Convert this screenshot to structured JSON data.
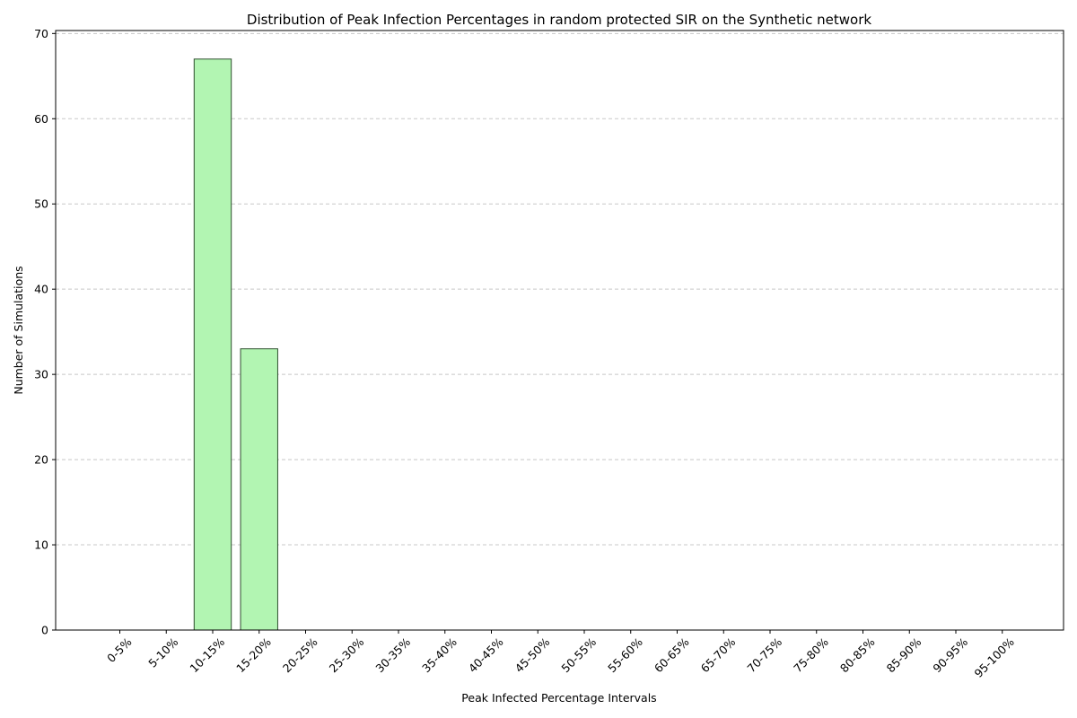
{
  "chart_data": {
    "type": "bar",
    "title": "Distribution of Peak Infection Percentages in random protected SIR on the Synthetic network",
    "xlabel": "Peak Infected Percentage Intervals",
    "ylabel": "Number of Simulations",
    "categories": [
      "0-5%",
      "5-10%",
      "10-15%",
      "15-20%",
      "20-25%",
      "25-30%",
      "30-35%",
      "35-40%",
      "40-45%",
      "45-50%",
      "50-55%",
      "55-60%",
      "60-65%",
      "65-70%",
      "70-75%",
      "75-80%",
      "80-85%",
      "85-90%",
      "90-95%",
      "95-100%"
    ],
    "values": [
      0,
      0,
      67,
      33,
      0,
      0,
      0,
      0,
      0,
      0,
      0,
      0,
      0,
      0,
      0,
      0,
      0,
      0,
      0,
      0
    ],
    "ylim": [
      0,
      70.35
    ],
    "yticks": [
      0,
      10,
      20,
      30,
      40,
      50,
      60,
      70
    ],
    "grid": "y-dashed",
    "bar_color": "#b2f5b2",
    "bar_edge_color": "#2f4f2f"
  }
}
